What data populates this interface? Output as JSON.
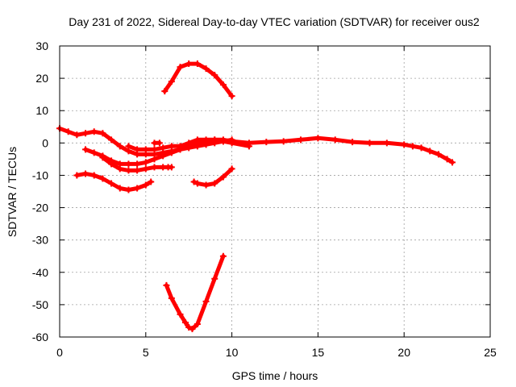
{
  "chart_data": {
    "type": "line",
    "title": "Day 231 of 2022, Sidereal Day-to-day VTEC variation (SDTVAR) for receiver ous2",
    "xlabel": "GPS time / hours",
    "ylabel": "SDTVAR / TECUs",
    "xlim": [
      0,
      25
    ],
    "ylim": [
      -60,
      30
    ],
    "xticks": [
      0,
      5,
      10,
      15,
      20,
      25
    ],
    "yticks": [
      30,
      20,
      10,
      0,
      -10,
      -20,
      -30,
      -40,
      -50,
      -60
    ],
    "grid": true,
    "color": "#ff0000",
    "series": [
      {
        "name": "main-arc",
        "x": [
          0,
          0.5,
          1,
          1.5,
          2,
          2.5,
          3,
          3.5,
          4,
          4.5,
          5,
          5.5,
          6,
          6.5,
          7,
          7.5,
          8,
          8.5,
          9,
          9.5,
          10,
          11,
          12,
          13,
          14,
          15,
          16,
          17,
          18,
          19,
          20,
          20.5,
          21,
          21.5,
          22,
          22.5,
          22.8
        ],
        "y": [
          4.5,
          3.5,
          2.5,
          3,
          3.5,
          3,
          1,
          -1,
          -2.5,
          -3.5,
          -3.5,
          -3.5,
          -3,
          -2.5,
          -2,
          -1,
          0,
          0.5,
          1,
          1,
          0.5,
          0,
          0.3,
          0.5,
          1,
          1.5,
          1,
          0.3,
          0,
          0,
          -0.5,
          -1,
          -1.5,
          -2.5,
          -3.5,
          -5,
          -6
        ]
      },
      {
        "name": "arc-a",
        "x": [
          1.5,
          2,
          2.5,
          3,
          3.5,
          4,
          4.5,
          5,
          5.5,
          6,
          6.5,
          7,
          7.5,
          8,
          8.5,
          9,
          9.5,
          10
        ],
        "y": [
          -2,
          -3,
          -4,
          -5.5,
          -6.5,
          -6.5,
          -6.5,
          -6,
          -5,
          -4,
          -3,
          -2,
          -1.5,
          -1,
          -0.5,
          0,
          0.5,
          1
        ]
      },
      {
        "name": "arc-b",
        "x": [
          2.5,
          3,
          3.5,
          4,
          4.5,
          5,
          5.5,
          6,
          6.3,
          6.5
        ],
        "y": [
          -4.5,
          -6.5,
          -8,
          -8.5,
          -8.5,
          -8,
          -7.5,
          -7.5,
          -7.5,
          -7.5
        ]
      },
      {
        "name": "arc-c",
        "x": [
          1,
          1.5,
          2,
          2.5,
          3,
          3.5,
          4,
          4.5,
          5,
          5.3
        ],
        "y": [
          -10,
          -9.5,
          -10,
          -11,
          -12.5,
          -14,
          -14.5,
          -14,
          -13,
          -12
        ]
      },
      {
        "name": "arc-d",
        "x": [
          4,
          4.5,
          5,
          5.5,
          6,
          6.5,
          7,
          7.5,
          8,
          8.5,
          9,
          9.5,
          10,
          11
        ],
        "y": [
          -1,
          -2,
          -2,
          -2,
          -1.5,
          -1,
          -1,
          0,
          1,
          1,
          1,
          0.5,
          0,
          -1
        ]
      },
      {
        "name": "arc-high",
        "x": [
          6.1,
          6.5,
          7,
          7.5,
          8,
          8.5,
          9,
          9.5,
          10
        ],
        "y": [
          16,
          19,
          23.5,
          24.5,
          24.5,
          23,
          21,
          18,
          14.5
        ]
      },
      {
        "name": "arc-mid",
        "x": [
          7.8,
          8,
          8.5,
          9,
          9.5,
          10
        ],
        "y": [
          -12,
          -12.5,
          -13,
          -12.5,
          -10.5,
          -8
        ]
      },
      {
        "name": "arc-low",
        "x": [
          6.2,
          6.5,
          7,
          7.3,
          7.5,
          7.7,
          8,
          8.5,
          9,
          9.5
        ],
        "y": [
          -44,
          -48,
          -53,
          -55.5,
          -57,
          -57.5,
          -56,
          -49,
          -42,
          -35
        ]
      },
      {
        "name": "stub",
        "x": [
          5.5,
          5.8
        ],
        "y": [
          0,
          0
        ]
      }
    ]
  }
}
